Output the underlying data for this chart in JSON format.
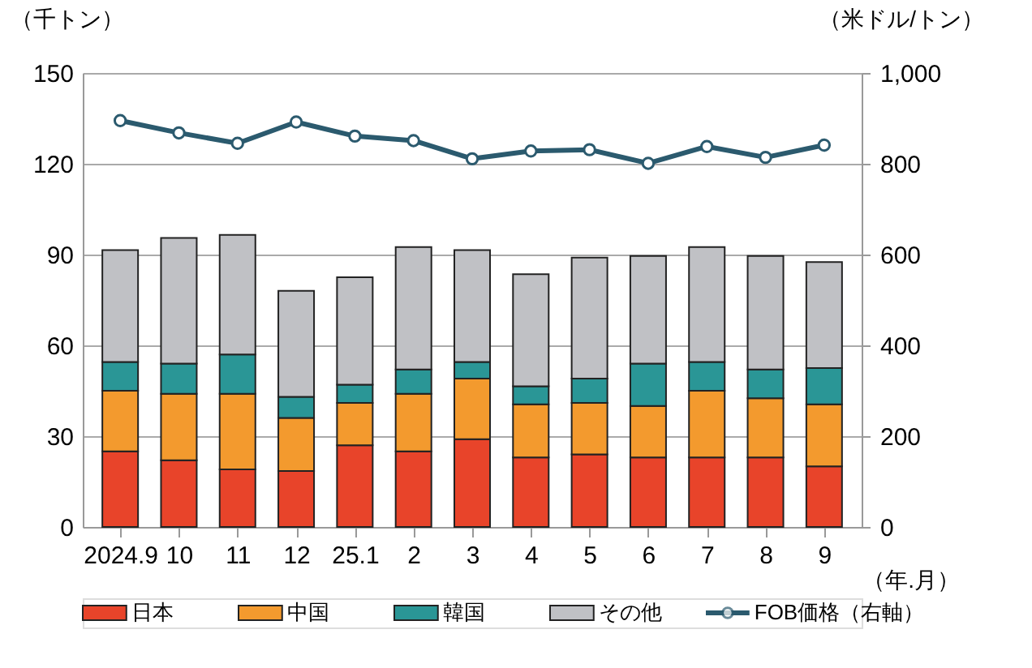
{
  "chart_data": {
    "type": "bar",
    "stacked": true,
    "xlabel": "（年.月）",
    "ylabel": "（千トン）",
    "y2label": "（米ドル/トン）",
    "categories": [
      "2024.9",
      "10",
      "11",
      "12",
      "25.1",
      "2",
      "3",
      "4",
      "5",
      "6",
      "7",
      "8",
      "9"
    ],
    "series": [
      {
        "name": "日本",
        "color": "#e8442a",
        "values": [
          25,
          22,
          19,
          18.5,
          27,
          25,
          29,
          23,
          24,
          23,
          23,
          23,
          20
        ]
      },
      {
        "name": "中国",
        "color": "#f39a2e",
        "values": [
          20,
          22,
          25,
          17.5,
          14,
          19,
          20,
          17.5,
          17,
          17,
          22,
          19.5,
          20.5
        ]
      },
      {
        "name": "韓国",
        "color": "#2a9696",
        "values": [
          9.5,
          10,
          13,
          7,
          6,
          8,
          5.5,
          6,
          8,
          14,
          9.5,
          9.5,
          12
        ]
      },
      {
        "name": "その他",
        "color": "#c0c1c5",
        "values": [
          37,
          41.5,
          39.5,
          35,
          35.5,
          40.5,
          37,
          37,
          40,
          35.5,
          38,
          37.5,
          35
        ]
      },
      {
        "name": "FOB価格（右軸）",
        "type": "line",
        "axis": "y2",
        "marker": "circle",
        "color": "#2b5a6e",
        "values": [
          895,
          868,
          845,
          892,
          861,
          851,
          811,
          828,
          831,
          801,
          838,
          814,
          841
        ]
      }
    ],
    "ylim": [
      0,
      150
    ],
    "yticks": [
      0,
      30,
      60,
      90,
      120,
      150
    ],
    "y2lim": [
      0,
      1000
    ],
    "y2ticks": [
      0,
      200,
      400,
      600,
      800,
      {
        "value": 1000,
        "label": "1,000"
      }
    ],
    "grid": "y",
    "legend": "bottom"
  }
}
